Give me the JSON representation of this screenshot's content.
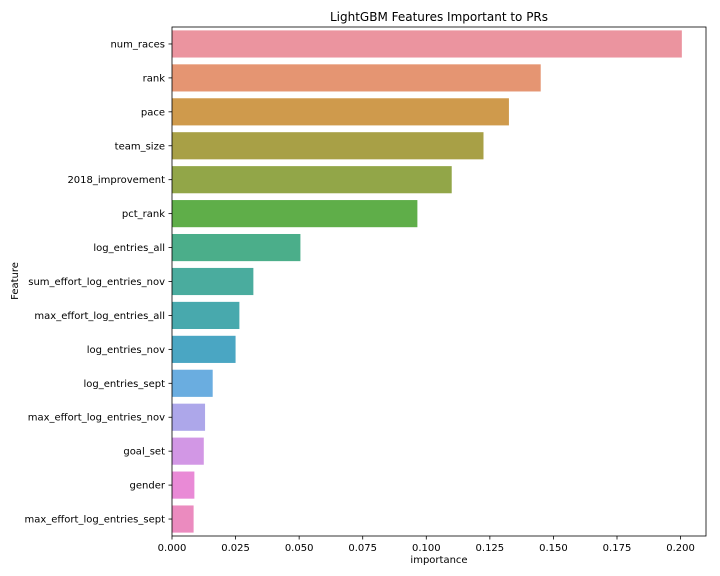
{
  "chart_data": {
    "type": "bar",
    "orientation": "horizontal",
    "title": "LightGBM Features Important to PRs",
    "xlabel": "importance",
    "ylabel": "Feature",
    "xlim": [
      0,
      0.21
    ],
    "xticks": [
      "0.000",
      "0.025",
      "0.050",
      "0.075",
      "0.100",
      "0.125",
      "0.150",
      "0.175",
      "0.200"
    ],
    "grid": false,
    "categories": [
      "num_races",
      "rank",
      "pace",
      "team_size",
      "2018_improvement",
      "pct_rank",
      "log_entries_all",
      "sum_effort_log_entries_nov",
      "max_effort_log_entries_all",
      "log_entries_nov",
      "log_entries_sept",
      "max_effort_log_entries_nov",
      "goal_set",
      "gender",
      "max_effort_log_entries_sept"
    ],
    "values": [
      0.2005,
      0.145,
      0.1325,
      0.1225,
      0.11,
      0.0965,
      0.0505,
      0.032,
      0.0265,
      0.025,
      0.016,
      0.013,
      0.0125,
      0.0088,
      0.0085
    ],
    "colors": [
      "#eb949f",
      "#e59572",
      "#cf9a4c",
      "#a8a046",
      "#92a648",
      "#5fae49",
      "#4bae8a",
      "#4aac9e",
      "#48a9ad",
      "#4aa6c3",
      "#6aade0",
      "#ada7ea",
      "#d297e5",
      "#e98ad6",
      "#eb8bbf"
    ]
  }
}
